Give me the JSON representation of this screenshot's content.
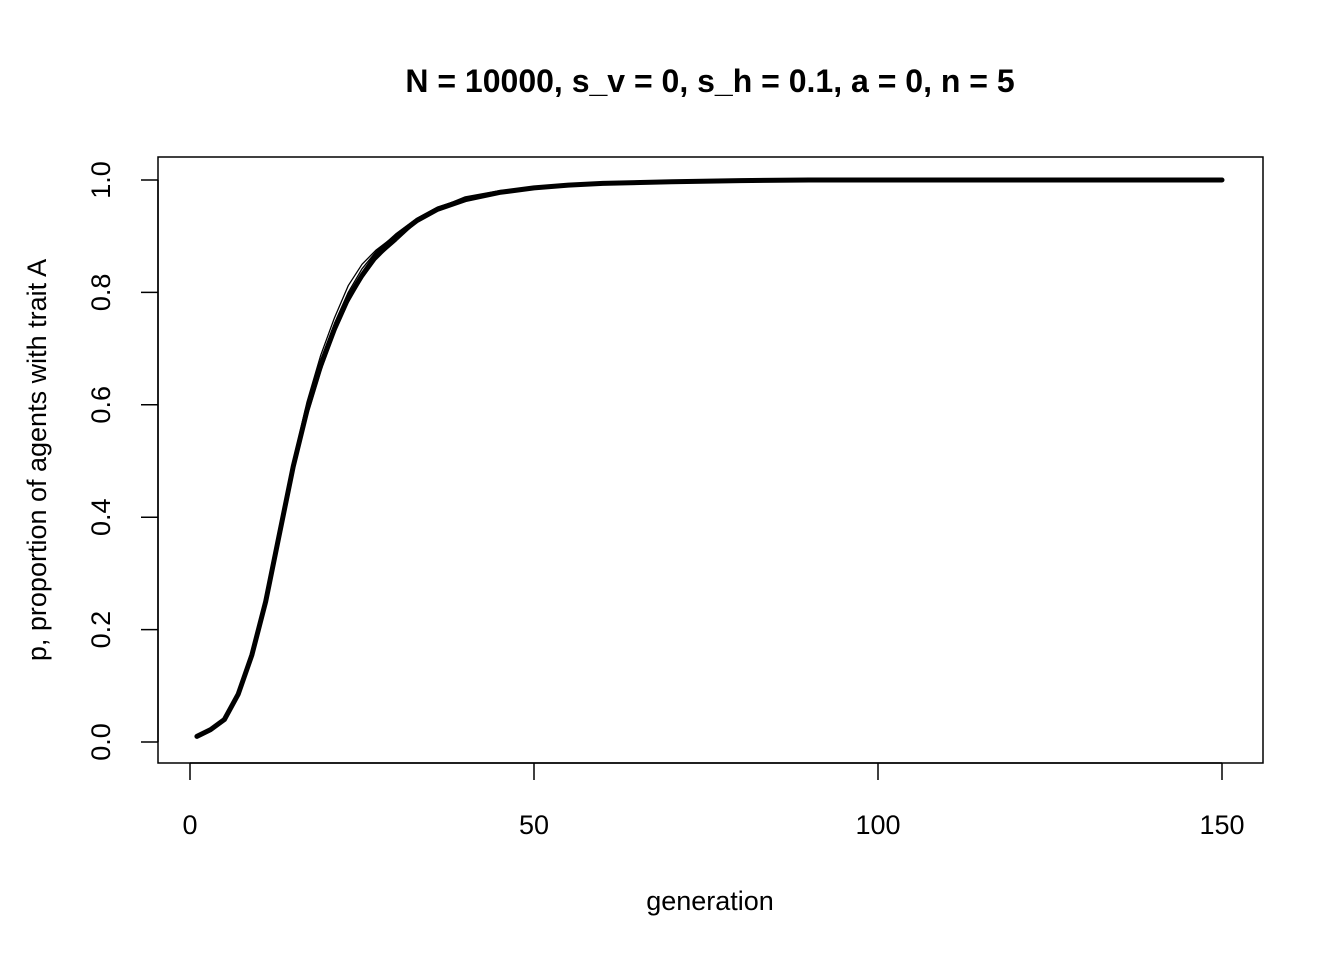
{
  "chart_data": {
    "type": "line",
    "title": "N = 10000, s_v = 0, s_h = 0.1, a = 0, n = 5",
    "xlabel": "generation",
    "ylabel": "p, proportion of agents with trait A",
    "xlim": [
      1,
      150
    ],
    "ylim": [
      0,
      1
    ],
    "xticks": [
      "0",
      "50",
      "100",
      "150"
    ],
    "yticks": [
      "0.0",
      "0.2",
      "0.4",
      "0.6",
      "0.8",
      "1.0"
    ],
    "grid": false,
    "x": [
      1,
      3,
      5,
      7,
      9,
      11,
      13,
      15,
      17,
      19,
      21,
      23,
      25,
      27,
      30,
      33,
      36,
      40,
      45,
      50,
      55,
      60,
      70,
      80,
      90,
      100,
      150
    ],
    "replicates": [
      {
        "values": [
          0.01,
          0.022,
          0.041,
          0.087,
          0.158,
          0.255,
          0.378,
          0.5,
          0.6,
          0.68,
          0.745,
          0.8,
          0.842,
          0.872,
          0.905,
          0.932,
          0.952,
          0.968,
          0.98,
          0.987,
          0.992,
          0.995,
          0.998,
          0.999,
          1.0,
          1.0,
          1.0
        ]
      },
      {
        "values": [
          0.01,
          0.021,
          0.039,
          0.083,
          0.15,
          0.245,
          0.362,
          0.48,
          0.58,
          0.66,
          0.728,
          0.782,
          0.825,
          0.858,
          0.895,
          0.925,
          0.945,
          0.962,
          0.976,
          0.985,
          0.99,
          0.994,
          0.997,
          0.999,
          1.0,
          1.0,
          1.0
        ]
      },
      {
        "values": [
          0.01,
          0.023,
          0.042,
          0.088,
          0.16,
          0.258,
          0.38,
          0.5,
          0.605,
          0.688,
          0.755,
          0.812,
          0.85,
          0.875,
          0.903,
          0.93,
          0.95,
          0.97,
          0.981,
          0.987,
          0.991,
          0.995,
          0.998,
          0.999,
          1.0,
          1.0,
          1.0
        ]
      },
      {
        "values": [
          0.01,
          0.022,
          0.04,
          0.084,
          0.153,
          0.248,
          0.368,
          0.488,
          0.588,
          0.668,
          0.732,
          0.786,
          0.826,
          0.86,
          0.892,
          0.926,
          0.946,
          0.963,
          0.977,
          0.985,
          0.99,
          0.994,
          0.997,
          0.999,
          1.0,
          1.0,
          1.0
        ]
      },
      {
        "values": [
          0.01,
          0.021,
          0.04,
          0.085,
          0.154,
          0.25,
          0.37,
          0.492,
          0.592,
          0.672,
          0.738,
          0.792,
          0.832,
          0.866,
          0.9,
          0.927,
          0.947,
          0.964,
          0.978,
          0.986,
          0.991,
          0.994,
          0.997,
          0.999,
          1.0,
          1.0,
          1.0
        ]
      }
    ],
    "mean": {
      "values": [
        0.01,
        0.022,
        0.04,
        0.085,
        0.155,
        0.25,
        0.37,
        0.49,
        0.59,
        0.67,
        0.735,
        0.79,
        0.83,
        0.865,
        0.9,
        0.928,
        0.948,
        0.965,
        0.978,
        0.986,
        0.991,
        0.994,
        0.997,
        0.999,
        1.0,
        1.0,
        1.0
      ]
    }
  }
}
